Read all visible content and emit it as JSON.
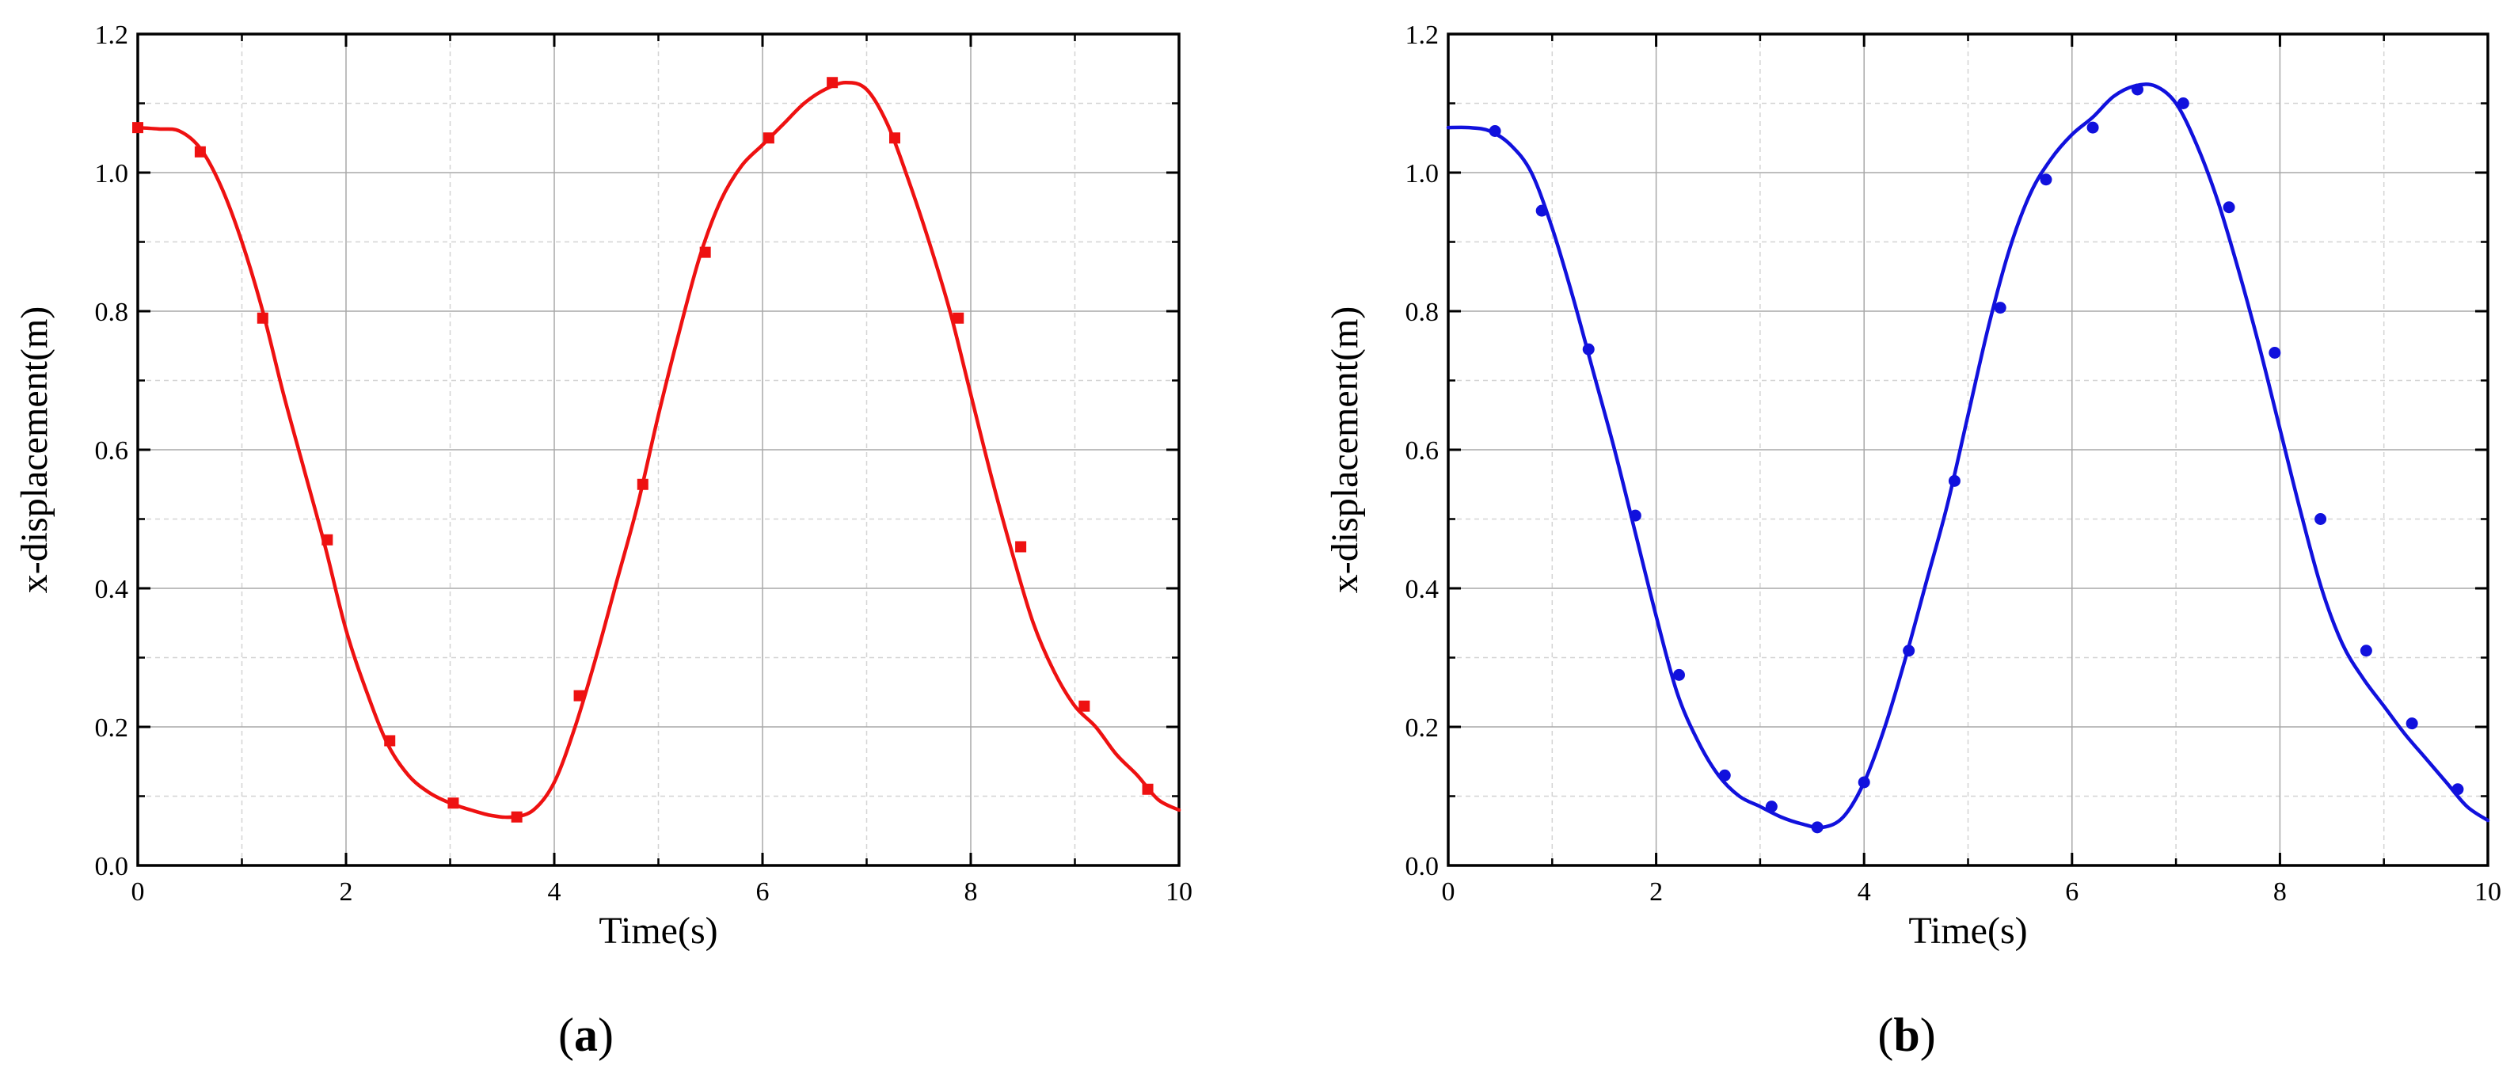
{
  "panels": [
    {
      "label_open": "(",
      "label_letter": "a",
      "label_close": ")"
    },
    {
      "label_open": "(",
      "label_letter": "b",
      "label_close": ")"
    }
  ],
  "chart_data": [
    {
      "type": "line",
      "title": "",
      "xlabel": "Time(s)",
      "ylabel": "x-displacement(m)",
      "xlim": [
        0,
        10
      ],
      "ylim": [
        0,
        1.2
      ],
      "x_ticks": [
        0,
        2,
        4,
        6,
        8,
        10
      ],
      "x_tick_labels": [
        "0",
        "2",
        "4",
        "6",
        "8",
        "10"
      ],
      "y_ticks": [
        0,
        0.2,
        0.4,
        0.6,
        0.8,
        1.0,
        1.2
      ],
      "y_tick_labels": [
        "0.0",
        "0.2",
        "0.4",
        "0.6",
        "0.8",
        "1.0",
        "1.2"
      ],
      "grid": true,
      "legend": "none",
      "color": "#ee1111",
      "marker": "square",
      "series": [
        {
          "x": [
            0,
            0.2,
            0.4,
            0.6,
            0.8,
            1.0,
            1.2,
            1.4,
            1.6,
            1.8,
            2.0,
            2.2,
            2.4,
            2.6,
            2.8,
            3.0,
            3.2,
            3.4,
            3.6,
            3.8,
            4.0,
            4.2,
            4.4,
            4.6,
            4.8,
            5.0,
            5.2,
            5.4,
            5.6,
            5.8,
            6.0,
            6.2,
            6.4,
            6.6,
            6.8,
            7.0,
            7.2,
            7.4,
            7.6,
            7.8,
            8.0,
            8.2,
            8.4,
            8.6,
            8.8,
            9.0,
            9.2,
            9.4,
            9.6,
            9.8,
            10.0
          ],
          "values": [
            1.065,
            1.063,
            1.06,
            1.035,
            0.98,
            0.9,
            0.8,
            0.68,
            0.57,
            0.46,
            0.34,
            0.25,
            0.175,
            0.13,
            0.105,
            0.09,
            0.08,
            0.072,
            0.07,
            0.08,
            0.12,
            0.2,
            0.3,
            0.41,
            0.52,
            0.65,
            0.77,
            0.88,
            0.96,
            1.01,
            1.04,
            1.07,
            1.1,
            1.12,
            1.13,
            1.12,
            1.07,
            0.99,
            0.9,
            0.8,
            0.68,
            0.56,
            0.45,
            0.35,
            0.28,
            0.23,
            0.2,
            0.16,
            0.13,
            0.095,
            0.08
          ]
        }
      ],
      "markers": {
        "x": [
          0,
          0.6,
          1.2,
          1.82,
          2.42,
          3.03,
          3.64,
          4.24,
          4.85,
          5.45,
          6.06,
          6.67,
          7.27,
          7.88,
          8.48,
          9.09,
          9.7
        ],
        "values": [
          1.065,
          1.03,
          0.79,
          0.47,
          0.18,
          0.09,
          0.07,
          0.245,
          0.55,
          0.885,
          1.05,
          1.13,
          1.05,
          0.79,
          0.46,
          0.23,
          0.11
        ]
      }
    },
    {
      "type": "line",
      "title": "",
      "xlabel": "Time(s)",
      "ylabel": "x-displacement(m)",
      "xlim": [
        0,
        10
      ],
      "ylim": [
        0,
        1.2
      ],
      "x_ticks": [
        0,
        2,
        4,
        6,
        8,
        10
      ],
      "x_tick_labels": [
        "0",
        "2",
        "4",
        "6",
        "8",
        "10"
      ],
      "y_ticks": [
        0,
        0.2,
        0.4,
        0.6,
        0.8,
        1.0,
        1.2
      ],
      "y_tick_labels": [
        "0.0",
        "0.2",
        "0.4",
        "0.6",
        "0.8",
        "1.0",
        "1.2"
      ],
      "grid": true,
      "legend": "none",
      "color": "#1111dd",
      "marker": "circle",
      "series": [
        {
          "x": [
            0,
            0.2,
            0.4,
            0.6,
            0.8,
            1.0,
            1.2,
            1.4,
            1.6,
            1.8,
            2.0,
            2.2,
            2.4,
            2.6,
            2.8,
            3.0,
            3.2,
            3.4,
            3.6,
            3.8,
            4.0,
            4.2,
            4.4,
            4.6,
            4.8,
            5.0,
            5.2,
            5.4,
            5.6,
            5.8,
            6.0,
            6.2,
            6.4,
            6.6,
            6.8,
            7.0,
            7.2,
            7.4,
            7.6,
            7.8,
            8.0,
            8.2,
            8.4,
            8.6,
            8.8,
            9.0,
            9.2,
            9.4,
            9.6,
            9.8,
            10.0
          ],
          "values": [
            1.065,
            1.065,
            1.06,
            1.04,
            1.0,
            0.92,
            0.82,
            0.71,
            0.6,
            0.48,
            0.36,
            0.25,
            0.18,
            0.13,
            0.1,
            0.085,
            0.07,
            0.06,
            0.055,
            0.07,
            0.12,
            0.2,
            0.3,
            0.41,
            0.52,
            0.65,
            0.78,
            0.89,
            0.97,
            1.02,
            1.055,
            1.08,
            1.11,
            1.125,
            1.125,
            1.1,
            1.04,
            0.96,
            0.86,
            0.75,
            0.63,
            0.51,
            0.4,
            0.32,
            0.27,
            0.23,
            0.19,
            0.155,
            0.12,
            0.085,
            0.065
          ]
        }
      ],
      "markers": {
        "x": [
          0.45,
          0.9,
          1.35,
          1.8,
          2.22,
          2.66,
          3.11,
          3.55,
          4.0,
          4.43,
          4.87,
          5.31,
          5.75,
          6.2,
          6.63,
          7.07,
          7.51,
          7.95,
          8.39,
          8.83,
          9.27,
          9.71
        ],
        "values": [
          1.06,
          0.945,
          0.745,
          0.505,
          0.275,
          0.13,
          0.085,
          0.055,
          0.12,
          0.31,
          0.555,
          0.805,
          0.99,
          1.065,
          1.12,
          1.1,
          0.95,
          0.74,
          0.5,
          0.31,
          0.205,
          0.11
        ]
      }
    }
  ]
}
